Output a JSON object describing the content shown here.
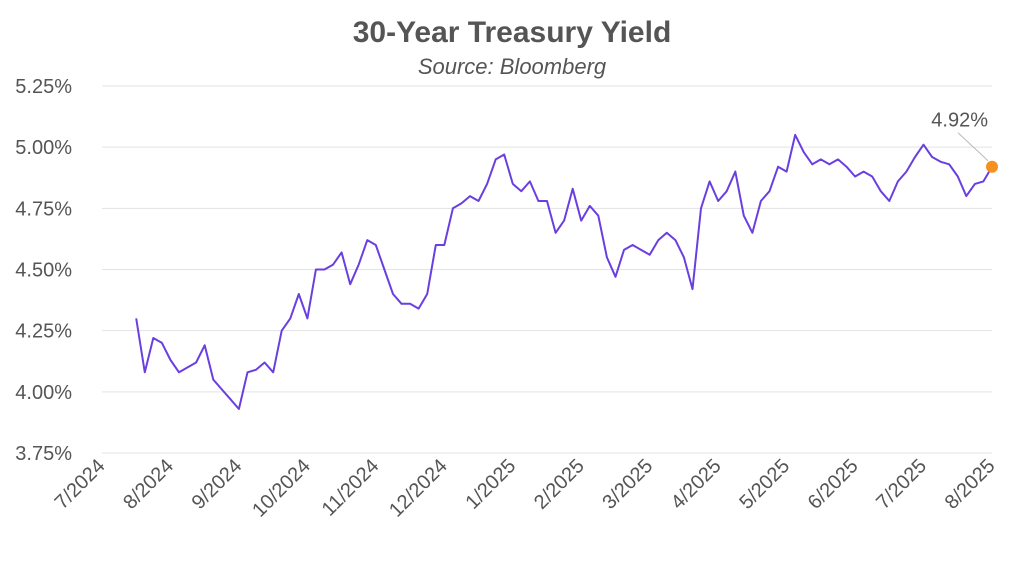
{
  "chart_data": {
    "type": "line",
    "title": "30-Year Treasury Yield",
    "subtitle": "Source: Bloomberg",
    "categories": [
      "7/2024",
      null,
      null,
      null,
      null,
      null,
      null,
      null,
      "8/2024",
      null,
      null,
      null,
      null,
      null,
      null,
      null,
      "9/2024",
      null,
      null,
      null,
      null,
      null,
      null,
      null,
      "10/2024",
      null,
      null,
      null,
      null,
      null,
      null,
      null,
      "11/2024",
      null,
      null,
      null,
      null,
      null,
      null,
      null,
      "12/2024",
      null,
      null,
      null,
      null,
      null,
      null,
      null,
      "1/2025",
      null,
      null,
      null,
      null,
      null,
      null,
      null,
      "2/2025",
      null,
      null,
      null,
      null,
      null,
      null,
      null,
      "3/2025",
      null,
      null,
      null,
      null,
      null,
      null,
      null,
      "4/2025",
      null,
      null,
      null,
      null,
      null,
      null,
      null,
      "5/2025",
      null,
      null,
      null,
      null,
      null,
      null,
      null,
      "6/2025",
      null,
      null,
      null,
      null,
      null,
      null,
      null,
      "7/2025",
      null,
      null,
      null,
      null,
      null,
      null,
      null,
      "8/2025"
    ],
    "series": [
      {
        "name": "30-Year Treasury Yield",
        "color": "#6a3fe0",
        "highlight_color": "#f5901e",
        "values": [
          null,
          null,
          null,
          null,
          4.3,
          4.08,
          4.22,
          4.2,
          4.13,
          4.08,
          4.1,
          4.12,
          4.19,
          4.05,
          4.01,
          3.97,
          3.93,
          4.08,
          4.09,
          4.12,
          4.08,
          4.25,
          4.3,
          4.4,
          4.3,
          4.5,
          4.5,
          4.52,
          4.57,
          4.44,
          4.52,
          4.62,
          4.6,
          4.5,
          4.4,
          4.36,
          4.36,
          4.34,
          4.4,
          4.6,
          4.6,
          4.75,
          4.77,
          4.8,
          4.78,
          4.85,
          4.95,
          4.97,
          4.85,
          4.82,
          4.86,
          4.78,
          4.78,
          4.65,
          4.7,
          4.83,
          4.7,
          4.76,
          4.72,
          4.55,
          4.47,
          4.58,
          4.6,
          4.58,
          4.56,
          4.62,
          4.65,
          4.62,
          4.55,
          4.42,
          4.75,
          4.86,
          4.78,
          4.82,
          4.9,
          4.72,
          4.65,
          4.78,
          4.82,
          4.92,
          4.9,
          5.05,
          4.98,
          4.93,
          4.95,
          4.93,
          4.95,
          4.92,
          4.88,
          4.9,
          4.88,
          4.82,
          4.78,
          4.86,
          4.9,
          4.96,
          5.01,
          4.96,
          4.94,
          4.93,
          4.88,
          4.8,
          4.85,
          4.86,
          4.92
        ],
        "value_labels": [
          null,
          null,
          null,
          null,
          null,
          null,
          null,
          null,
          null,
          null,
          null,
          null,
          null,
          null,
          null,
          null,
          null,
          null,
          null,
          null,
          null,
          null,
          null,
          null,
          null,
          null,
          null,
          null,
          null,
          null,
          null,
          null,
          null,
          null,
          null,
          null,
          null,
          null,
          null,
          null,
          null,
          null,
          null,
          null,
          null,
          null,
          null,
          null,
          null,
          null,
          null,
          null,
          null,
          null,
          null,
          null,
          null,
          null,
          null,
          null,
          null,
          null,
          null,
          null,
          null,
          null,
          null,
          null,
          null,
          null,
          null,
          null,
          null,
          null,
          null,
          null,
          null,
          null,
          null,
          null,
          null,
          null,
          null,
          null,
          null,
          null,
          null,
          null,
          null,
          null,
          null,
          null,
          null,
          null,
          null,
          null,
          null,
          null,
          null,
          null,
          null,
          null,
          null,
          null,
          "4.92%"
        ]
      }
    ],
    "ylim": [
      3.75,
      5.25
    ],
    "yticks": [
      {
        "value": 3.75,
        "label": "3.75%"
      },
      {
        "value": 4.0,
        "label": "4.00%"
      },
      {
        "value": 4.25,
        "label": "4.25%"
      },
      {
        "value": 4.5,
        "label": "4.50%"
      },
      {
        "value": 4.75,
        "label": "4.75%"
      },
      {
        "value": 5.0,
        "label": "5.00%"
      },
      {
        "value": 5.25,
        "label": "5.25%"
      }
    ],
    "grid": true
  }
}
